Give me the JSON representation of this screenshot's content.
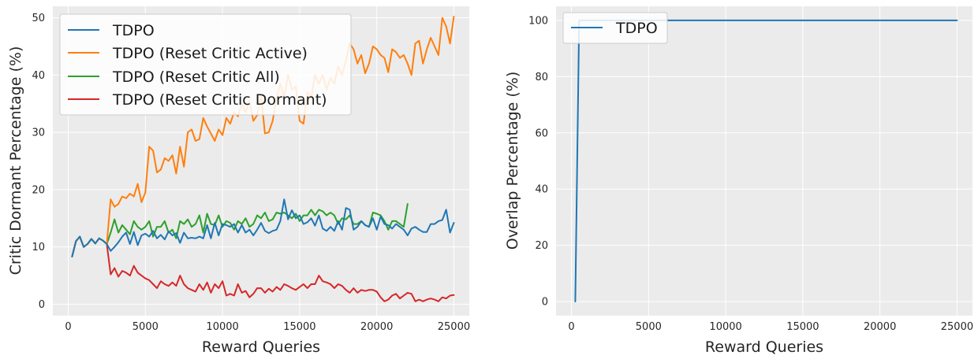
{
  "chart_data": [
    {
      "type": "line",
      "title": "",
      "xlabel": "Reward Queries",
      "ylabel": "Critic Dormant Percentage (%)",
      "xlim": [
        -1000,
        26000
      ],
      "ylim": [
        -2,
        52
      ],
      "xticks": [
        0,
        5000,
        10000,
        15000,
        20000,
        25000
      ],
      "yticks": [
        0,
        10,
        20,
        30,
        40,
        50
      ],
      "grid": true,
      "legend": "upper-left",
      "series": [
        {
          "name": "TDPO",
          "color": "#1f77b4",
          "x": [
            250,
            500,
            750,
            1000,
            1250,
            1500,
            1750,
            2000,
            2250,
            2500,
            2750,
            3000,
            3250,
            3500,
            3750,
            4000,
            4250,
            4500,
            4750,
            5000,
            5250,
            5500,
            5750,
            6000,
            6250,
            6500,
            6750,
            7000,
            7250,
            7500,
            7750,
            8000,
            8250,
            8500,
            8750,
            9000,
            9250,
            9500,
            9750,
            10000,
            10250,
            10500,
            10750,
            11000,
            11250,
            11500,
            11750,
            12000,
            12250,
            12500,
            12750,
            13000,
            13250,
            13500,
            13750,
            14000,
            14250,
            14500,
            14750,
            15000,
            15250,
            15500,
            15750,
            16000,
            16250,
            16500,
            16750,
            17000,
            17250,
            17500,
            17750,
            18000,
            18250,
            18500,
            18750,
            19000,
            19250,
            19500,
            19750,
            20000,
            20250,
            20500,
            20750,
            21000,
            21250,
            21500,
            21750,
            22000,
            22250,
            22500,
            22750,
            23000,
            23250,
            23500,
            23750,
            24000,
            24250,
            24500,
            24750,
            25000
          ],
          "y": [
            8.3,
            11.0,
            11.8,
            10.0,
            10.5,
            11.4,
            10.6,
            11.5,
            11.1,
            10.5,
            9.3,
            10.0,
            10.8,
            11.8,
            12.5,
            10.5,
            12.6,
            10.3,
            12.0,
            12.3,
            11.8,
            12.8,
            11.5,
            12.1,
            11.3,
            12.7,
            12.0,
            12.4,
            10.7,
            12.5,
            11.5,
            11.6,
            11.5,
            11.8,
            11.5,
            13.8,
            11.5,
            14.2,
            12.0,
            14.0,
            13.8,
            13.5,
            14.0,
            12.5,
            13.8,
            12.5,
            13.0,
            12.0,
            13.0,
            14.2,
            12.8,
            12.4,
            12.8,
            13.0,
            14.5,
            18.3,
            14.8,
            16.4,
            15.0,
            15.5,
            14.0,
            14.3,
            15.0,
            13.7,
            15.5,
            13.2,
            12.8,
            13.5,
            12.8,
            14.5,
            13.0,
            16.8,
            16.5,
            13.0,
            13.5,
            14.5,
            13.8,
            13.5,
            15.0,
            13.0,
            15.3,
            14.0,
            13.8,
            13.2,
            14.0,
            13.5,
            13.0,
            12.0,
            13.2,
            13.5,
            13.0,
            12.6,
            12.6,
            14.0,
            14.0,
            14.5,
            14.7,
            16.5,
            12.5,
            14.2
          ]
        },
        {
          "name": "TDPO (Reset Critic Active)",
          "color": "#ff7f0e",
          "x": [
            250,
            500,
            750,
            1000,
            1250,
            1500,
            1750,
            2000,
            2250,
            2500,
            2750,
            3000,
            3250,
            3500,
            3750,
            4000,
            4250,
            4500,
            4750,
            5000,
            5250,
            5500,
            5750,
            6000,
            6250,
            6500,
            6750,
            7000,
            7250,
            7500,
            7750,
            8000,
            8250,
            8500,
            8750,
            9000,
            9250,
            9500,
            9750,
            10000,
            10250,
            10500,
            10750,
            11000,
            11250,
            11500,
            11750,
            12000,
            12250,
            12500,
            12750,
            13000,
            13250,
            13500,
            13750,
            14000,
            14250,
            14500,
            14750,
            15000,
            15250,
            15500,
            15750,
            16000,
            16250,
            16500,
            16750,
            17000,
            17250,
            17500,
            17750,
            18000,
            18250,
            18500,
            18750,
            19000,
            19250,
            19500,
            19750,
            20000,
            20250,
            20500,
            20750,
            21000,
            21250,
            21500,
            21750,
            22000,
            22250,
            22500,
            22750,
            23000,
            23250,
            23500,
            23750,
            24000,
            24250,
            24500,
            24750,
            25000
          ],
          "y": [
            8.3,
            11.0,
            11.8,
            10.0,
            10.5,
            11.4,
            10.6,
            11.5,
            11.1,
            10.5,
            18.3,
            17.0,
            17.5,
            18.8,
            18.5,
            19.3,
            18.8,
            21.0,
            17.8,
            19.5,
            27.5,
            26.8,
            23.0,
            23.5,
            25.5,
            25.0,
            26.0,
            22.8,
            27.5,
            24.0,
            30.0,
            30.5,
            28.5,
            28.8,
            32.5,
            31.0,
            29.8,
            28.5,
            30.5,
            29.5,
            32.5,
            31.5,
            33.5,
            32.8,
            35.0,
            33.5,
            35.5,
            32.0,
            33.0,
            36.5,
            29.8,
            30.0,
            32.0,
            36.0,
            38.5,
            36.0,
            40.0,
            37.5,
            38.0,
            32.0,
            31.5,
            37.0,
            36.0,
            40.0,
            38.5,
            40.0,
            37.5,
            39.5,
            38.5,
            41.5,
            40.0,
            42.5,
            45.5,
            44.5,
            42.0,
            43.5,
            40.3,
            42.0,
            45.0,
            44.5,
            43.5,
            43.0,
            40.5,
            44.5,
            44.0,
            43.0,
            43.5,
            42.0,
            40.0,
            45.5,
            46.0,
            42.0,
            44.5,
            46.5,
            45.0,
            43.5,
            50.0,
            48.5,
            45.5,
            50.2
          ]
        },
        {
          "name": "TDPO (Reset Critic All)",
          "color": "#2ca02c",
          "x": [
            250,
            500,
            750,
            1000,
            1250,
            1500,
            1750,
            2000,
            2250,
            2500,
            2750,
            3000,
            3250,
            3500,
            3750,
            4000,
            4250,
            4500,
            4750,
            5000,
            5250,
            5500,
            5750,
            6000,
            6250,
            6500,
            6750,
            7000,
            7250,
            7500,
            7750,
            8000,
            8250,
            8500,
            8750,
            9000,
            9250,
            9500,
            9750,
            10000,
            10250,
            10500,
            10750,
            11000,
            11250,
            11500,
            11750,
            12000,
            12250,
            12500,
            12750,
            13000,
            13250,
            13500,
            13750,
            14000,
            14250,
            14500,
            14750,
            15000,
            15250,
            15500,
            15750,
            16000,
            16250,
            16500,
            16750,
            17000,
            17250,
            17500,
            17750,
            18000,
            18250,
            18500,
            18750,
            19000,
            19250,
            19500,
            19750,
            20000,
            20250,
            20500,
            20750,
            21000,
            21250,
            21500,
            21750,
            22000
          ],
          "y": [
            8.3,
            11.0,
            11.8,
            10.0,
            10.5,
            11.4,
            10.6,
            11.5,
            11.1,
            10.5,
            12.5,
            14.8,
            12.5,
            13.8,
            13.0,
            12.2,
            14.5,
            13.5,
            13.0,
            13.5,
            14.5,
            11.8,
            13.5,
            13.5,
            14.5,
            12.5,
            13.0,
            11.5,
            14.5,
            14.0,
            14.8,
            13.5,
            14.0,
            15.5,
            12.5,
            15.8,
            14.0,
            13.8,
            15.5,
            13.5,
            14.5,
            14.2,
            13.0,
            14.5,
            14.0,
            15.0,
            13.5,
            14.0,
            15.5,
            15.0,
            16.0,
            14.5,
            14.8,
            16.0,
            15.8,
            16.0,
            15.5,
            15.0,
            15.8,
            14.5,
            15.5,
            15.5,
            16.5,
            15.5,
            16.5,
            16.2,
            15.5,
            16.0,
            15.5,
            14.0,
            15.0,
            14.8,
            15.5,
            14.0,
            14.0,
            14.5,
            13.8,
            13.5,
            16.0,
            15.8,
            15.5,
            14.5,
            13.0,
            14.5,
            14.5,
            14.0,
            13.5,
            17.5
          ]
        },
        {
          "name": "TDPO (Reset Critic Dormant)",
          "color": "#d62728",
          "x": [
            250,
            500,
            750,
            1000,
            1250,
            1500,
            1750,
            2000,
            2250,
            2500,
            2750,
            3000,
            3250,
            3500,
            3750,
            4000,
            4250,
            4500,
            4750,
            5000,
            5250,
            5500,
            5750,
            6000,
            6250,
            6500,
            6750,
            7000,
            7250,
            7500,
            7750,
            8000,
            8250,
            8500,
            8750,
            9000,
            9250,
            9500,
            9750,
            10000,
            10250,
            10500,
            10750,
            11000,
            11250,
            11500,
            11750,
            12000,
            12250,
            12500,
            12750,
            13000,
            13250,
            13500,
            13750,
            14000,
            14250,
            14500,
            14750,
            15000,
            15250,
            15500,
            15750,
            16000,
            16250,
            16500,
            16750,
            17000,
            17250,
            17500,
            17750,
            18000,
            18250,
            18500,
            18750,
            19000,
            19250,
            19500,
            19750,
            20000,
            20250,
            20500,
            20750,
            21000,
            21250,
            21500,
            21750,
            22000,
            22250,
            22500,
            22750,
            23000,
            23250,
            23500,
            23750,
            24000,
            24250,
            24500,
            24750,
            25000
          ],
          "y": [
            8.3,
            11.0,
            11.8,
            10.0,
            10.5,
            11.4,
            10.6,
            11.5,
            11.1,
            10.5,
            5.2,
            6.3,
            4.8,
            5.8,
            5.5,
            5.0,
            6.7,
            5.5,
            5.0,
            4.5,
            4.2,
            3.5,
            2.8,
            4.0,
            3.5,
            3.2,
            3.8,
            3.2,
            5.0,
            3.5,
            2.8,
            2.5,
            2.2,
            3.5,
            2.5,
            3.8,
            2.0,
            3.5,
            2.8,
            4.0,
            1.5,
            1.8,
            1.5,
            3.5,
            2.0,
            2.3,
            1.2,
            1.8,
            2.8,
            2.8,
            2.0,
            2.7,
            2.2,
            3.0,
            2.5,
            3.5,
            3.2,
            2.8,
            2.5,
            3.0,
            3.5,
            2.8,
            3.5,
            3.5,
            5.0,
            4.0,
            3.8,
            3.5,
            2.8,
            3.5,
            3.2,
            2.5,
            2.0,
            2.8,
            2.0,
            2.5,
            2.3,
            2.5,
            2.5,
            2.2,
            1.2,
            0.5,
            0.8,
            1.5,
            1.8,
            1.0,
            1.5,
            2.0,
            1.8,
            0.5,
            0.8,
            0.5,
            0.8,
            1.0,
            0.8,
            0.5,
            1.2,
            1.0,
            1.5,
            1.6
          ]
        }
      ]
    },
    {
      "type": "line",
      "title": "",
      "xlabel": "Reward Queries",
      "ylabel": "Overlap Percentage (%)",
      "xlim": [
        -1000,
        26000
      ],
      "ylim": [
        -5,
        105
      ],
      "xticks": [
        0,
        5000,
        10000,
        15000,
        20000,
        25000
      ],
      "yticks": [
        0,
        20,
        40,
        60,
        80,
        100
      ],
      "grid": true,
      "legend": "upper-left",
      "series": [
        {
          "name": "TDPO",
          "color": "#1f77b4",
          "x": [
            250,
            500,
            750,
            25000
          ],
          "y": [
            0,
            100,
            100,
            100
          ]
        }
      ]
    }
  ]
}
